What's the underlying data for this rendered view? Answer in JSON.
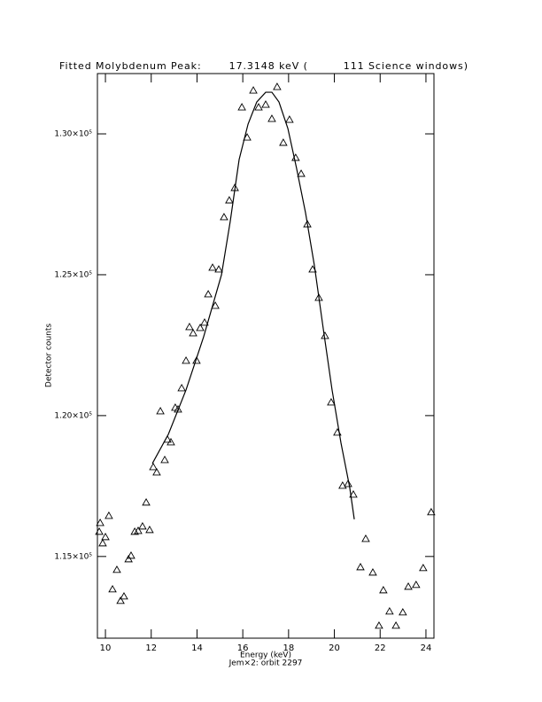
{
  "chart_data": {
    "type": "scatter",
    "title": "Fitted Molybdenum Peak:       17.3148 keV (         111 Science windows)",
    "x_label": "Energy (keV)",
    "subtitle": "Jem×2: orbit 2297",
    "y_label": "Detector counts",
    "xlim": [
      9.65,
      24.35
    ],
    "ylim": [
      112100,
      132140
    ],
    "xticks": [
      10,
      12,
      14,
      16,
      18,
      20,
      22,
      24
    ],
    "yticks": [
      {
        "value": 115000,
        "label": "1.15×10⁵"
      },
      {
        "value": 120000,
        "label": "1.20×10⁵"
      },
      {
        "value": 125000,
        "label": "1.25×10⁵"
      },
      {
        "value": 130000,
        "label": "1.30×10⁵"
      }
    ],
    "series": [
      {
        "marker": "triangle",
        "color": "#000000",
        "x": [
          9.73,
          9.77,
          9.88,
          10.0,
          10.15,
          10.31,
          10.5,
          10.66,
          10.81,
          11.01,
          11.12,
          11.28,
          11.43,
          11.62,
          11.78,
          11.93,
          12.09,
          12.24,
          12.4,
          12.59,
          12.71,
          12.86,
          13.05,
          13.17,
          13.33,
          13.52,
          13.67,
          13.83,
          13.98,
          14.14,
          14.33,
          14.49,
          14.68,
          14.8,
          14.95,
          15.18,
          15.41,
          15.65,
          15.96,
          16.19,
          16.46,
          16.69,
          17.0,
          17.27,
          17.5,
          17.77,
          18.04,
          18.31,
          18.55,
          18.82,
          19.05,
          19.32,
          19.59,
          19.86,
          20.13,
          20.36,
          20.6,
          20.83,
          21.14,
          21.37,
          21.68,
          21.95,
          22.14,
          22.41,
          22.69,
          22.99,
          23.23,
          23.57,
          23.88,
          24.23
        ],
        "values": [
          115879,
          116193,
          115470,
          115690,
          116445,
          113835,
          114527,
          113426,
          113583,
          114904,
          115030,
          115879,
          115910,
          116068,
          116917,
          115942,
          118175,
          117986,
          120156,
          118426,
          119150,
          119055,
          120282,
          120219,
          120974,
          121949,
          123144,
          122924,
          121949,
          123112,
          123301,
          124307,
          125251,
          123899,
          125188,
          127044,
          127641,
          128082,
          130944,
          129874,
          131541,
          130944,
          131038,
          130535,
          131667,
          129686,
          130503,
          129151,
          128585,
          126792,
          125188,
          124182,
          122829,
          120471,
          119401,
          117514,
          117577,
          117200,
          114621,
          115627,
          114432,
          112545,
          113803,
          113049,
          112545,
          113017,
          113929,
          113992,
          114590,
          116572
        ]
      },
      {
        "marker": "line",
        "color": "#000000",
        "x": [
          12.05,
          12.75,
          13.52,
          14.29,
          15.07,
          15.45,
          15.84,
          16.23,
          16.61,
          17.0,
          17.27,
          17.58,
          17.97,
          18.35,
          18.74,
          19.13,
          19.51,
          19.9,
          20.29,
          20.67,
          20.87
        ],
        "values": [
          118300,
          119339,
          120911,
          122798,
          125000,
          126886,
          129088,
          130346,
          131132,
          131478,
          131478,
          131132,
          130189,
          128773,
          127201,
          125314,
          123112,
          120911,
          119024,
          117451,
          116319
        ]
      }
    ]
  }
}
